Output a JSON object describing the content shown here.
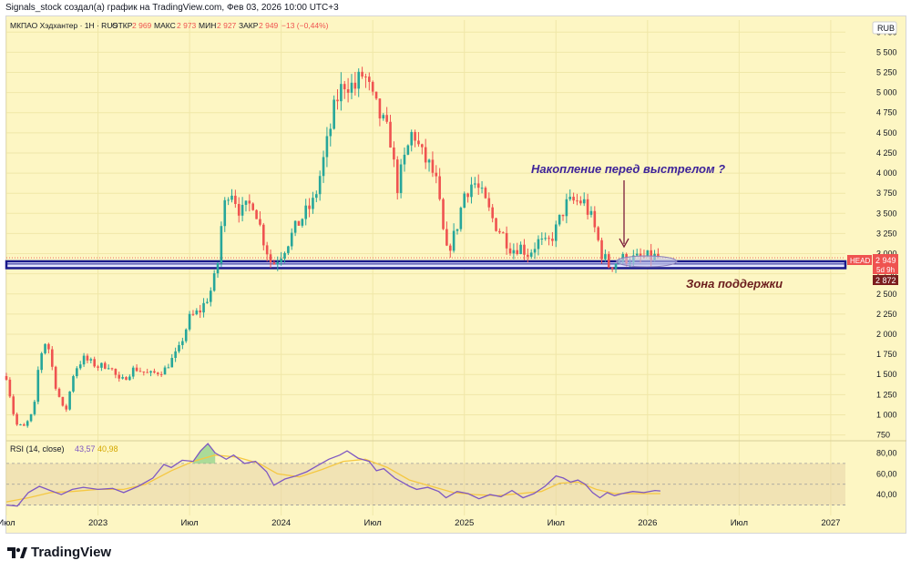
{
  "header": {
    "author_line": "Signals_stock создал(а) график на TradingView.com, Фев 03, 2026 10:00 UTC+3"
  },
  "legend": {
    "symbol": "МКПАО Хэдхантер · 1Н · RUS",
    "open_label": "ОТКР",
    "open_value": "2 969",
    "high_label": "МАКС",
    "high_value": "2 973",
    "low_label": "МИН",
    "low_value": "2 927",
    "close_label": "ЗАКР",
    "close_value": "2 949",
    "change": "−13 (−0,44%)"
  },
  "currency": "RUB",
  "price_labels": {
    "ticker": "HEAD",
    "last": "2 949",
    "countdown": "5d 9h",
    "zone": "2 872"
  },
  "annotations": {
    "accumulation": "Накопление перед выстрелом ?",
    "support": "Зона поддержки"
  },
  "rsi": {
    "label": "RSI (14, close)",
    "value": "43,57",
    "ma_value": "40,98",
    "ticks": [
      "80,00",
      "60,00",
      "40,00"
    ],
    "upper_band": 70,
    "mid_band": 50,
    "lower_band": 30,
    "ylim": [
      20,
      90
    ]
  },
  "colors": {
    "background": "#fdf6c3",
    "up": "#26a69a",
    "down": "#ef5350",
    "rsi_line": "#7e57c2",
    "rsi_ma": "#f5c842",
    "zone": "#1a1a8c",
    "annotation_text": "#3d2399",
    "support_text": "#6b1d1d"
  },
  "chart_data": {
    "type": "candlestick",
    "y_ticks": [
      "5 750",
      "5 500",
      "5 250",
      "5 000",
      "4 750",
      "4 500",
      "4 250",
      "4 000",
      "3 750",
      "3 500",
      "3 250",
      "3 000",
      "2 750",
      "2 500",
      "2 250",
      "2 000",
      "1 750",
      "1 500",
      "1 250",
      "1 000",
      "750"
    ],
    "ylim": [
      700,
      5900
    ],
    "x_ticks": [
      {
        "label": "Июл",
        "t": 2022.5
      },
      {
        "label": "2023",
        "t": 2023.0
      },
      {
        "label": "Июл",
        "t": 2023.5
      },
      {
        "label": "2024",
        "t": 2024.0
      },
      {
        "label": "Июл",
        "t": 2024.5
      },
      {
        "label": "2025",
        "t": 2025.0
      },
      {
        "label": "Июл",
        "t": 2025.5
      },
      {
        "label": "2026",
        "t": 2026.0
      },
      {
        "label": "Июл",
        "t": 2026.5
      },
      {
        "label": "2027",
        "t": 2027.0
      }
    ],
    "xlim": [
      2022.5,
      2027.08
    ],
    "support_zone": [
      2820,
      2905
    ],
    "accumulation_range": [
      2025.85,
      2026.1
    ],
    "price_path": [
      [
        2022.5,
        1480
      ],
      [
        2022.55,
        880
      ],
      [
        2022.6,
        850
      ],
      [
        2022.65,
        1050
      ],
      [
        2022.68,
        1700
      ],
      [
        2022.72,
        1950
      ],
      [
        2022.77,
        1350
      ],
      [
        2022.82,
        1000
      ],
      [
        2022.87,
        1550
      ],
      [
        2022.92,
        1700
      ],
      [
        2023.0,
        1600
      ],
      [
        2023.06,
        1620
      ],
      [
        2023.12,
        1400
      ],
      [
        2023.2,
        1580
      ],
      [
        2023.28,
        1500
      ],
      [
        2023.36,
        1550
      ],
      [
        2023.44,
        1800
      ],
      [
        2023.5,
        2200
      ],
      [
        2023.56,
        2300
      ],
      [
        2023.61,
        2500
      ],
      [
        2023.65,
        2800
      ],
      [
        2023.68,
        3500
      ],
      [
        2023.72,
        3850
      ],
      [
        2023.78,
        3500
      ],
      [
        2023.85,
        3650
      ],
      [
        2023.9,
        3200
      ],
      [
        2023.95,
        2850
      ],
      [
        2024.0,
        3000
      ],
      [
        2024.05,
        3200
      ],
      [
        2024.1,
        3400
      ],
      [
        2024.18,
        3650
      ],
      [
        2024.24,
        4250
      ],
      [
        2024.3,
        4900
      ],
      [
        2024.35,
        5150
      ],
      [
        2024.4,
        5050
      ],
      [
        2024.45,
        5250
      ],
      [
        2024.5,
        4900
      ],
      [
        2024.55,
        4650
      ],
      [
        2024.6,
        4400
      ],
      [
        2024.63,
        3800
      ],
      [
        2024.66,
        4050
      ],
      [
        2024.72,
        4550
      ],
      [
        2024.76,
        4250
      ],
      [
        2024.82,
        4050
      ],
      [
        2024.85,
        3850
      ],
      [
        2024.9,
        3000
      ],
      [
        2024.95,
        3250
      ],
      [
        2025.0,
        3750
      ],
      [
        2025.05,
        3900
      ],
      [
        2025.1,
        3700
      ],
      [
        2025.16,
        3400
      ],
      [
        2025.22,
        3200
      ],
      [
        2025.26,
        3050
      ],
      [
        2025.3,
        3100
      ],
      [
        2025.35,
        3000
      ],
      [
        2025.4,
        3150
      ],
      [
        2025.45,
        3100
      ],
      [
        2025.5,
        3300
      ],
      [
        2025.55,
        3600
      ],
      [
        2025.6,
        3650
      ],
      [
        2025.65,
        3650
      ],
      [
        2025.7,
        3400
      ],
      [
        2025.75,
        3000
      ],
      [
        2025.79,
        2850
      ],
      [
        2025.83,
        2900
      ],
      [
        2025.88,
        2950
      ],
      [
        2025.93,
        2930
      ],
      [
        2025.98,
        2950
      ],
      [
        2026.03,
        2960
      ],
      [
        2026.07,
        2949
      ]
    ],
    "rsi_path": [
      [
        2022.5,
        30
      ],
      [
        2022.56,
        29
      ],
      [
        2022.62,
        42
      ],
      [
        2022.68,
        48
      ],
      [
        2022.74,
        44
      ],
      [
        2022.8,
        40
      ],
      [
        2022.86,
        45
      ],
      [
        2022.92,
        47
      ],
      [
        2023.0,
        45
      ],
      [
        2023.08,
        46
      ],
      [
        2023.14,
        42
      ],
      [
        2023.22,
        48
      ],
      [
        2023.3,
        56
      ],
      [
        2023.36,
        69
      ],
      [
        2023.4,
        66
      ],
      [
        2023.46,
        73
      ],
      [
        2023.52,
        72
      ],
      [
        2023.56,
        82
      ],
      [
        2023.6,
        89
      ],
      [
        2023.64,
        80
      ],
      [
        2023.7,
        74
      ],
      [
        2023.74,
        78
      ],
      [
        2023.8,
        70
      ],
      [
        2023.86,
        72
      ],
      [
        2023.92,
        62
      ],
      [
        2023.96,
        49
      ],
      [
        2024.02,
        55
      ],
      [
        2024.08,
        58
      ],
      [
        2024.14,
        62
      ],
      [
        2024.2,
        68
      ],
      [
        2024.26,
        74
      ],
      [
        2024.32,
        78
      ],
      [
        2024.36,
        82
      ],
      [
        2024.42,
        75
      ],
      [
        2024.48,
        72
      ],
      [
        2024.52,
        63
      ],
      [
        2024.56,
        65
      ],
      [
        2024.62,
        56
      ],
      [
        2024.66,
        52
      ],
      [
        2024.7,
        48
      ],
      [
        2024.74,
        45
      ],
      [
        2024.8,
        47
      ],
      [
        2024.86,
        43
      ],
      [
        2024.9,
        37
      ],
      [
        2024.96,
        43
      ],
      [
        2025.02,
        41
      ],
      [
        2025.08,
        36
      ],
      [
        2025.14,
        40
      ],
      [
        2025.2,
        38
      ],
      [
        2025.26,
        44
      ],
      [
        2025.32,
        37
      ],
      [
        2025.38,
        41
      ],
      [
        2025.44,
        48
      ],
      [
        2025.5,
        58
      ],
      [
        2025.54,
        56
      ],
      [
        2025.58,
        52
      ],
      [
        2025.62,
        54
      ],
      [
        2025.66,
        50
      ],
      [
        2025.7,
        42
      ],
      [
        2025.74,
        37
      ],
      [
        2025.78,
        42
      ],
      [
        2025.82,
        39
      ],
      [
        2025.86,
        41
      ],
      [
        2025.92,
        43
      ],
      [
        2025.98,
        42
      ],
      [
        2026.04,
        44
      ],
      [
        2026.07,
        43.57
      ]
    ],
    "rsi_ma_path": [
      [
        2022.5,
        33
      ],
      [
        2022.62,
        37
      ],
      [
        2022.74,
        42
      ],
      [
        2022.86,
        43
      ],
      [
        2023.0,
        45
      ],
      [
        2023.14,
        45
      ],
      [
        2023.26,
        50
      ],
      [
        2023.4,
        63
      ],
      [
        2023.52,
        72
      ],
      [
        2023.64,
        78
      ],
      [
        2023.76,
        76
      ],
      [
        2023.88,
        70
      ],
      [
        2023.98,
        60
      ],
      [
        2024.1,
        57
      ],
      [
        2024.22,
        64
      ],
      [
        2024.34,
        72
      ],
      [
        2024.46,
        74
      ],
      [
        2024.58,
        66
      ],
      [
        2024.7,
        54
      ],
      [
        2024.82,
        48
      ],
      [
        2024.94,
        42
      ],
      [
        2025.06,
        40
      ],
      [
        2025.18,
        39
      ],
      [
        2025.3,
        41
      ],
      [
        2025.42,
        43
      ],
      [
        2025.52,
        51
      ],
      [
        2025.62,
        52
      ],
      [
        2025.72,
        45
      ],
      [
        2025.82,
        41
      ],
      [
        2025.94,
        41
      ],
      [
        2026.07,
        40.98
      ]
    ]
  }
}
